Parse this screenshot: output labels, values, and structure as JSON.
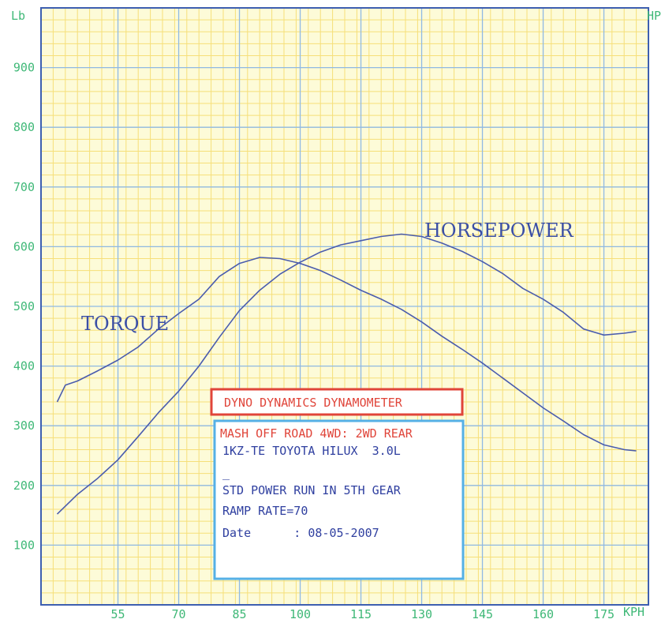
{
  "colors": {
    "plot_background": "#fdfbd8",
    "minor_grid": "#f6df79",
    "major_grid": "#8fb9e4",
    "frame": "#3d5fb0",
    "axis_text": "#3fb877",
    "curve": "#4a5cae",
    "title_box_border": "#e0453a",
    "info_box_border": "#55b0e6",
    "info_red_text": "#e0453a",
    "info_blue_text": "#3040a0"
  },
  "chart_data": {
    "type": "line",
    "x_unit_label": "KPH",
    "y_left_unit_label": "Lb",
    "y_right_unit_label": "HP",
    "x_ticks": [
      55,
      70,
      85,
      100,
      115,
      130,
      145,
      160,
      175
    ],
    "y_ticks": [
      100,
      200,
      300,
      400,
      500,
      600,
      700,
      800,
      900
    ],
    "xlim": [
      36,
      186
    ],
    "ylim": [
      0,
      1000
    ],
    "grid": true,
    "series": [
      {
        "name": "TORQUE",
        "x": [
          40,
          42,
          45,
          50,
          55,
          60,
          65,
          70,
          75,
          80,
          85,
          90,
          95,
          100,
          105,
          110,
          115,
          120,
          125,
          130,
          135,
          140,
          145,
          150,
          155,
          160,
          165,
          170,
          175,
          180,
          183
        ],
        "y": [
          340,
          368,
          375,
          392,
          410,
          432,
          462,
          488,
          512,
          550,
          572,
          582,
          580,
          572,
          560,
          544,
          527,
          512,
          495,
          474,
          450,
          428,
          405,
          380,
          355,
          330,
          308,
          285,
          268,
          260,
          258
        ]
      },
      {
        "name": "HORSEPOWER",
        "x": [
          40,
          45,
          50,
          55,
          60,
          65,
          70,
          75,
          80,
          85,
          90,
          95,
          100,
          105,
          110,
          115,
          120,
          125,
          130,
          135,
          140,
          145,
          150,
          155,
          160,
          165,
          170,
          175,
          180,
          183
        ],
        "y": [
          152,
          185,
          212,
          243,
          282,
          322,
          358,
          400,
          448,
          493,
          527,
          554,
          574,
          591,
          603,
          610,
          617,
          621,
          617,
          606,
          592,
          575,
          555,
          530,
          512,
          490,
          462,
          452,
          455,
          458
        ]
      }
    ],
    "labels": {
      "torque": "TORQUE",
      "horsepower": "HORSEPOWER"
    }
  },
  "info_box": {
    "title": "DYNO DYNAMICS DYNAMOMETER",
    "line1": "MASH OFF ROAD 4WD: 2WD REAR",
    "line2": "1KZ-TE TOYOTA HILUX  3.0L",
    "line3": "_",
    "line4": "STD POWER RUN IN 5TH GEAR",
    "line5": "RAMP RATE=70",
    "line6": "Date      : 08-05-2007"
  }
}
